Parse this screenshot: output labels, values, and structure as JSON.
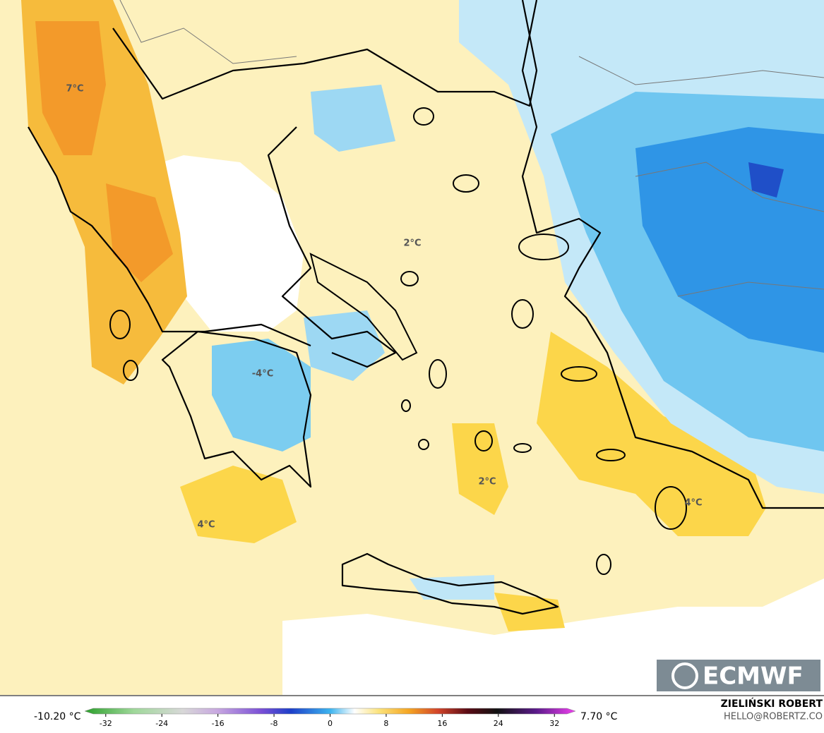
{
  "map": {
    "labels": [
      {
        "text": "7°C"
      },
      {
        "text": "2°C"
      },
      {
        "text": "-4°C"
      },
      {
        "text": "4°C"
      },
      {
        "text": "2°C"
      },
      {
        "text": "4°C"
      }
    ]
  },
  "logo": "ECMWF",
  "legend": {
    "min_label": "-10.20 °C",
    "max_label": "7.70 °C",
    "colorbar": {
      "lim": [
        -35,
        35
      ],
      "ticks": [
        -32,
        -24,
        -16,
        -8,
        0,
        8,
        16,
        24,
        32
      ]
    }
  },
  "credit": {
    "name": "ZIELIŃSKI ROBERT",
    "email": "HELLO@ROBERTZ.CO"
  }
}
